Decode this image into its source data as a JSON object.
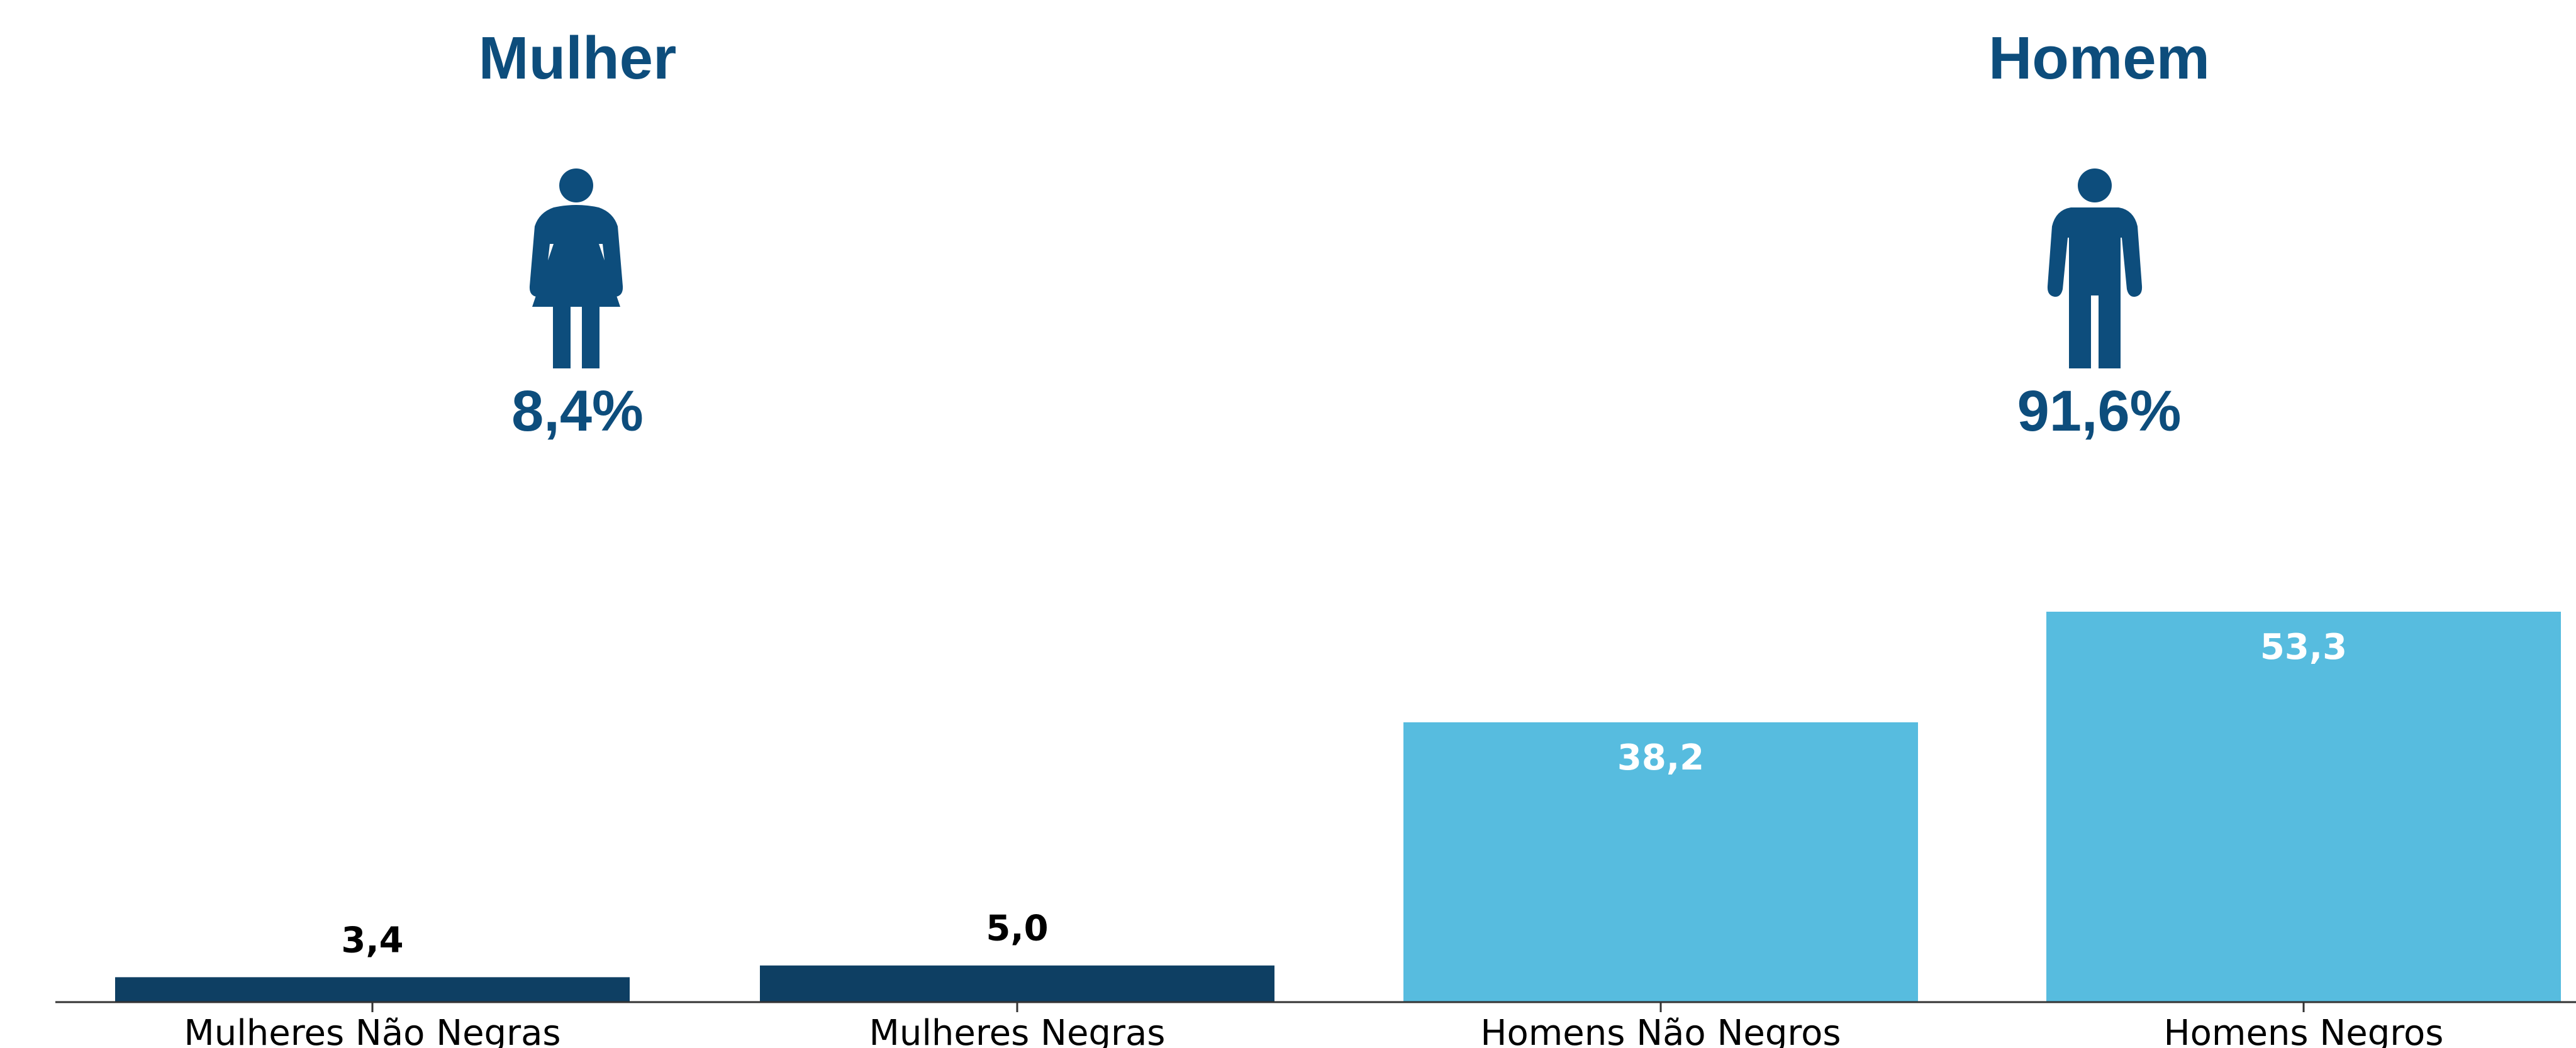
{
  "groups": [
    {
      "label": "Mulher",
      "percent": "8,4%",
      "icon": "woman-icon"
    },
    {
      "label": "Homem",
      "percent": "91,6%",
      "icon": "man-icon"
    }
  ],
  "colors": {
    "title": "#0d4d7c",
    "dark_bar": "#0e3f63",
    "light_bar": "#57bcdf",
    "dark_label": "#000000",
    "light_label": "#ffffff",
    "axis": "#333333"
  },
  "chart_data": {
    "type": "bar",
    "categories": [
      "Mulheres Não Negras",
      "Mulheres Negras",
      "Homens Não Negros",
      "Homens Negros"
    ],
    "values": [
      3.4,
      5.0,
      38.2,
      53.3
    ],
    "value_labels": [
      "3,4",
      "5,0",
      "38,2",
      "53,3"
    ],
    "bar_colors": [
      "#0e3f63",
      "#0e3f63",
      "#57bcdf",
      "#57bcdf"
    ],
    "label_position": [
      "above",
      "above",
      "inside",
      "inside"
    ],
    "ylim": [
      0,
      55
    ],
    "title": "",
    "xlabel": "",
    "ylabel": "",
    "grid": false
  }
}
